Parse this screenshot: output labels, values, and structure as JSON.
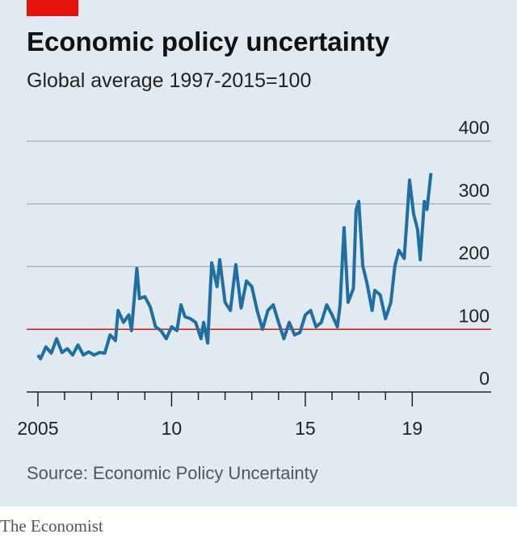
{
  "chart_data": {
    "type": "line",
    "title": "Economic policy uncertainty",
    "subtitle": "Global average 1997-2015=100",
    "source": "Source: Economic Policy Uncertainty",
    "footer": "The Economist",
    "x": [
      2005.0,
      2005.1,
      2005.3,
      2005.5,
      2005.7,
      2005.9,
      2006.1,
      2006.3,
      2006.5,
      2006.7,
      2006.9,
      2007.1,
      2007.3,
      2007.5,
      2007.7,
      2007.9,
      2008.0,
      2008.2,
      2008.4,
      2008.5,
      2008.7,
      2008.8,
      2009.0,
      2009.2,
      2009.4,
      2009.6,
      2009.8,
      2010.0,
      2010.2,
      2010.35,
      2010.5,
      2010.7,
      2010.9,
      2011.1,
      2011.2,
      2011.35,
      2011.5,
      2011.7,
      2011.8,
      2012.0,
      2012.2,
      2012.4,
      2012.6,
      2012.8,
      2013.0,
      2013.2,
      2013.4,
      2013.6,
      2013.8,
      2014.0,
      2014.2,
      2014.4,
      2014.6,
      2014.8,
      2015.0,
      2015.2,
      2015.4,
      2015.6,
      2015.8,
      2016.0,
      2016.2,
      2016.3,
      2016.45,
      2016.6,
      2016.8,
      2016.9,
      2017.0,
      2017.15,
      2017.3,
      2017.5,
      2017.6,
      2017.8,
      2018.0,
      2018.2,
      2018.35,
      2018.5,
      2018.7,
      2018.9,
      2019.05,
      2019.2,
      2019.3,
      2019.45,
      2019.55,
      2019.7
    ],
    "series": [
      {
        "color": "#1f6fa3",
        "values": [
          59,
          53,
          72,
          62,
          85,
          63,
          69,
          59,
          75,
          59,
          64,
          59,
          63,
          62,
          91,
          82,
          130,
          111,
          123,
          98,
          197,
          149,
          152,
          136,
          104,
          98,
          85,
          104,
          98,
          139,
          120,
          117,
          111,
          85,
          111,
          78,
          206,
          168,
          211,
          143,
          130,
          203,
          134,
          177,
          168,
          130,
          100,
          130,
          139,
          111,
          85,
          111,
          91,
          95,
          123,
          130,
          104,
          111,
          139,
          123,
          104,
          139,
          262,
          143,
          165,
          291,
          304,
          201,
          175,
          130,
          162,
          155,
          117,
          143,
          201,
          226,
          213,
          338,
          284,
          259,
          211,
          304,
          291,
          349
        ]
      }
    ],
    "reference_line": {
      "value": 100,
      "color": "#e3120b"
    },
    "xlim": [
      2004.64,
      2021.86
    ],
    "xticks": [
      2005,
      {
        "value": 2010,
        "label": "10"
      },
      {
        "value": 2015,
        "label": "15"
      },
      {
        "value": 2019,
        "label": "19"
      }
    ],
    "xminorticks": [
      2006,
      2007,
      2008,
      2009,
      2011,
      2012,
      2013,
      2014,
      2016,
      2017,
      2018
    ],
    "ylim": [
      0,
      400
    ],
    "yticks": [
      0,
      100,
      200,
      300,
      400
    ],
    "grid": true
  }
}
